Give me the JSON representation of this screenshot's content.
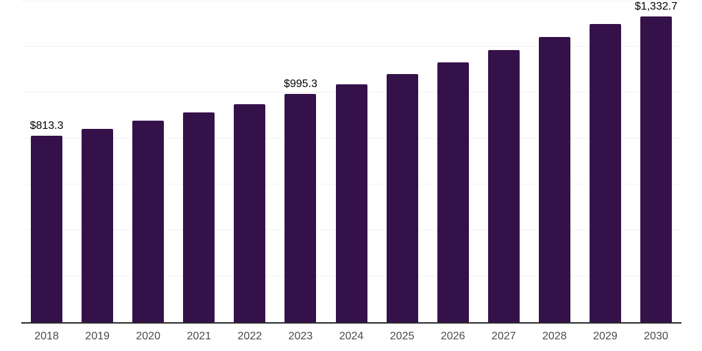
{
  "chart_data": {
    "type": "bar",
    "title": "",
    "xlabel": "",
    "ylabel": "",
    "categories": [
      "2018",
      "2019",
      "2020",
      "2021",
      "2022",
      "2023",
      "2024",
      "2025",
      "2026",
      "2027",
      "2028",
      "2029",
      "2030"
    ],
    "values": [
      813.3,
      844,
      878,
      914,
      951,
      995.3,
      1038,
      1081,
      1132,
      1186,
      1244,
      1301,
      1332.7
    ],
    "value_labels": [
      "$813.3",
      null,
      null,
      null,
      null,
      "$995.3",
      null,
      null,
      null,
      null,
      null,
      null,
      "$1,332.7"
    ],
    "ylim": [
      0,
      1400
    ],
    "gridline_step": 200,
    "grid": true,
    "legend": false,
    "colors": {
      "bar": "#351149",
      "gridline": "#f2f2f2",
      "axis_line": "#2b2b2b",
      "tick_label": "#4a4a4a",
      "value_label": "#000000",
      "background": "#ffffff"
    }
  }
}
